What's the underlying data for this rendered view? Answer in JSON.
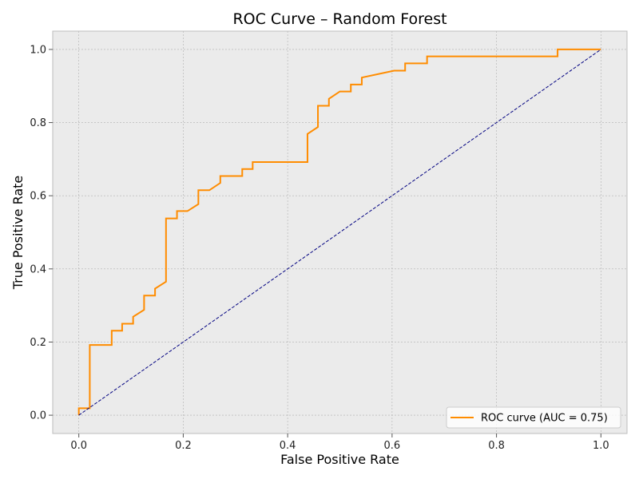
{
  "chart_data": {
    "type": "line",
    "title": "ROC Curve – Random Forest",
    "xlabel": "False Positive Rate",
    "ylabel": "True Positive Rate",
    "xlim": [
      -0.05,
      1.05
    ],
    "ylim": [
      -0.05,
      1.05
    ],
    "xticks": [
      0.0,
      0.2,
      0.4,
      0.6,
      0.8,
      1.0
    ],
    "yticks": [
      0.0,
      0.2,
      0.4,
      0.6,
      0.8,
      1.0
    ],
    "tick_labels_x": [
      "0.0",
      "0.2",
      "0.4",
      "0.6",
      "0.8",
      "1.0"
    ],
    "tick_labels_y": [
      "0.0",
      "0.2",
      "0.4",
      "0.6",
      "0.8",
      "1.0"
    ],
    "grid": true,
    "legend_position": "lower-right",
    "series": [
      {
        "name": "ROC curve (AUC = 0.75)",
        "color": "#ff8c00",
        "style": "solid",
        "x": [
          0.0,
          0.0,
          0.021,
          0.021,
          0.063,
          0.063,
          0.083,
          0.083,
          0.104,
          0.104,
          0.125,
          0.125,
          0.146,
          0.146,
          0.167,
          0.167,
          0.188,
          0.188,
          0.208,
          0.229,
          0.229,
          0.25,
          0.271,
          0.271,
          0.313,
          0.313,
          0.333,
          0.333,
          0.438,
          0.438,
          0.458,
          0.458,
          0.479,
          0.479,
          0.5,
          0.521,
          0.521,
          0.542,
          0.542,
          0.604,
          0.625,
          0.625,
          0.667,
          0.667,
          0.917,
          0.917,
          1.0
        ],
        "y": [
          0.0,
          0.019,
          0.019,
          0.192,
          0.192,
          0.231,
          0.231,
          0.25,
          0.25,
          0.269,
          0.288,
          0.327,
          0.327,
          0.346,
          0.365,
          0.538,
          0.538,
          0.558,
          0.558,
          0.577,
          0.615,
          0.615,
          0.635,
          0.654,
          0.654,
          0.673,
          0.673,
          0.692,
          0.692,
          0.769,
          0.788,
          0.846,
          0.846,
          0.865,
          0.885,
          0.885,
          0.904,
          0.904,
          0.923,
          0.942,
          0.942,
          0.962,
          0.962,
          0.981,
          0.981,
          1.0,
          1.0
        ]
      },
      {
        "name": "",
        "color": "#000080",
        "style": "dashed",
        "x": [
          0.0,
          1.0
        ],
        "y": [
          0.0,
          1.0
        ]
      }
    ]
  },
  "colors": {
    "plot_background": "#ebebeb",
    "grid": "#b0b0b0",
    "axes_edge": "#bcbcbc"
  }
}
